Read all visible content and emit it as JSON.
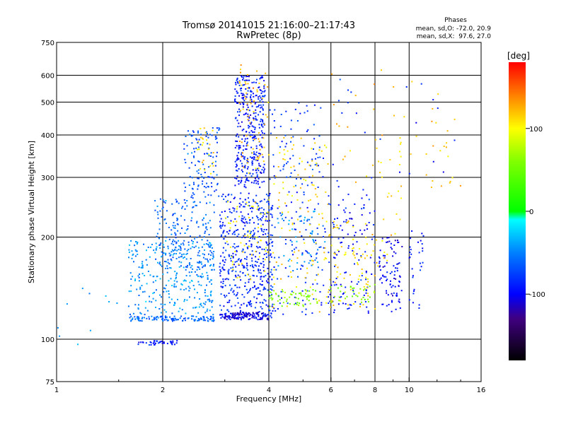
{
  "chart_data": {
    "type": "scatter",
    "title": "Tromsø 20141015 21:16:00–21:17:43",
    "subtitle": "RwPretec (8p)",
    "xlabel": "Frequency [MHz]",
    "ylabel": "Stationary phase Virtual Height [km]",
    "x_scale": "log",
    "y_scale": "log",
    "xlim": [
      1,
      16
    ],
    "ylim": [
      75,
      750
    ],
    "x_ticks": [
      1,
      2,
      4,
      6,
      8,
      10,
      16
    ],
    "x_tick_labels": [
      "1",
      "2",
      "4",
      "6",
      "8",
      "10",
      "16"
    ],
    "y_ticks": [
      75,
      100,
      200,
      300,
      400,
      500,
      600,
      750
    ],
    "y_tick_labels": [
      "75",
      "100",
      "200",
      "300",
      "400",
      "500",
      "600",
      "750"
    ],
    "x_grid": [
      2,
      4,
      6,
      8,
      10
    ],
    "y_grid": [
      100,
      200,
      300,
      400,
      500,
      600
    ],
    "grid": true,
    "stats_title": "Phases",
    "stats_o": "mean, sd,O: -72.0, 20.9",
    "stats_x": "mean, sd,X:  97.6, 27.0",
    "colorbar": {
      "label": "[deg]",
      "range": [
        -180,
        180
      ],
      "ticks": [
        100,
        0,
        -100
      ],
      "tick_labels": [
        "100",
        "0",
        "-100"
      ],
      "colors": [
        "#ff0000",
        "#ff8000",
        "#ffff00",
        "#80ff00",
        "#00ff00",
        "#00ffff",
        "#0080ff",
        "#0000ff",
        "#400080",
        "#000000"
      ]
    },
    "clusters": [
      {
        "fmin": 1.7,
        "fmax": 2.2,
        "hmin": 96,
        "hmax": 99,
        "phase": -92,
        "n": 40
      },
      {
        "fmin": 1.6,
        "fmax": 2.8,
        "hmin": 113,
        "hmax": 117,
        "phase": -60,
        "n": 120
      },
      {
        "fmin": 1.6,
        "fmax": 2.8,
        "hmin": 118,
        "hmax": 195,
        "phase": -45,
        "n": 300
      },
      {
        "fmin": 1.9,
        "fmax": 2.8,
        "hmin": 160,
        "hmax": 260,
        "phase": -60,
        "n": 200
      },
      {
        "fmin": 2.3,
        "fmax": 2.9,
        "hmin": 260,
        "hmax": 420,
        "phase": -70,
        "n": 120
      },
      {
        "fmin": 2.5,
        "fmax": 2.8,
        "hmin": 300,
        "hmax": 420,
        "phase": 110,
        "n": 25
      },
      {
        "fmin": 2.9,
        "fmax": 4.1,
        "hmin": 115,
        "hmax": 270,
        "phase": -85,
        "n": 500
      },
      {
        "fmin": 3.2,
        "fmax": 3.9,
        "hmin": 280,
        "hmax": 600,
        "phase": -90,
        "n": 350
      },
      {
        "fmin": 3.3,
        "fmax": 4.0,
        "hmin": 300,
        "hmax": 650,
        "phase": 120,
        "n": 70
      },
      {
        "fmin": 3.0,
        "fmax": 4.0,
        "hmin": 150,
        "hmax": 260,
        "phase": 100,
        "n": 60
      },
      {
        "fmin": 2.9,
        "fmax": 4.0,
        "hmin": 114,
        "hmax": 120,
        "phase": -110,
        "n": 120
      },
      {
        "fmin": 4.0,
        "fmax": 5.8,
        "hmin": 118,
        "hmax": 500,
        "phase": -80,
        "n": 180
      },
      {
        "fmin": 4.1,
        "fmax": 5.9,
        "hmin": 120,
        "hmax": 420,
        "phase": 110,
        "n": 110
      },
      {
        "fmin": 4.0,
        "fmax": 5.5,
        "hmin": 125,
        "hmax": 140,
        "phase": 60,
        "n": 60
      },
      {
        "fmin": 4.2,
        "fmax": 5.8,
        "hmin": 160,
        "hmax": 240,
        "phase": -40,
        "n": 50
      },
      {
        "fmin": 5.9,
        "fmax": 8.0,
        "hmin": 118,
        "hmax": 300,
        "phase": -90,
        "n": 130
      },
      {
        "fmin": 5.9,
        "fmax": 8.0,
        "hmin": 120,
        "hmax": 230,
        "phase": 110,
        "n": 80
      },
      {
        "fmin": 5.9,
        "fmax": 8.0,
        "hmin": 128,
        "hmax": 145,
        "phase": 60,
        "n": 35
      },
      {
        "fmin": 8.2,
        "fmax": 9.6,
        "hmin": 120,
        "hmax": 200,
        "phase": -100,
        "n": 90
      },
      {
        "fmin": 8.0,
        "fmax": 9.6,
        "hmin": 150,
        "hmax": 400,
        "phase": 110,
        "n": 30
      },
      {
        "fmin": 10.0,
        "fmax": 11.0,
        "hmin": 120,
        "hmax": 210,
        "phase": -90,
        "n": 30
      },
      {
        "fmin": 6.0,
        "fmax": 14.0,
        "hmin": 280,
        "hmax": 650,
        "phase": 120,
        "n": 45
      },
      {
        "fmin": 6.0,
        "fmax": 14.0,
        "hmin": 300,
        "hmax": 650,
        "phase": -90,
        "n": 20
      },
      {
        "fmin": 1.0,
        "fmax": 1.6,
        "hmin": 88,
        "hmax": 150,
        "phase": -40,
        "n": 10
      }
    ]
  }
}
